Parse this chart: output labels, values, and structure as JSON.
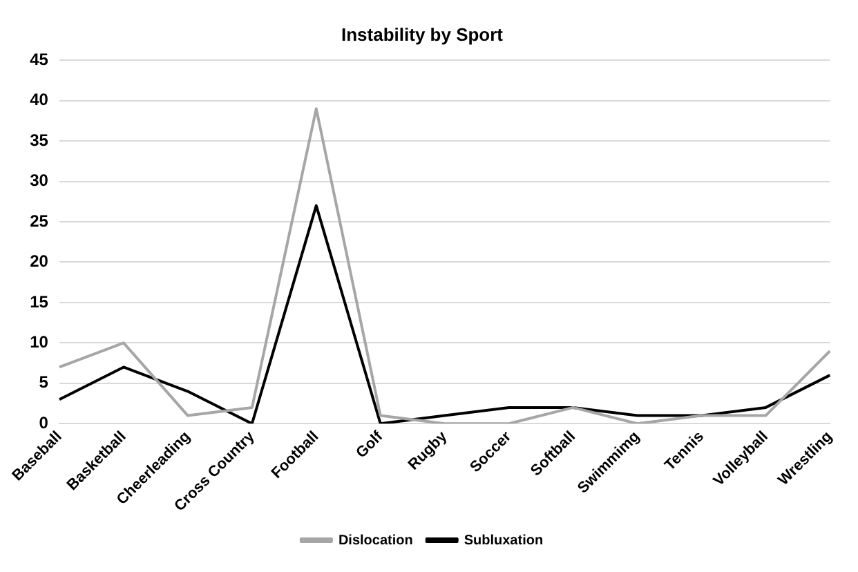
{
  "chart_data": {
    "type": "line",
    "title": "Instability by Sport",
    "categories": [
      "Baseball",
      "Basketball",
      "Cheerleading",
      "Cross Country",
      "Football",
      "Golf",
      "Rugby",
      "Soccer",
      "Softball",
      "Swimmimg",
      "Tennis",
      "Volleyball",
      "Wrestling"
    ],
    "series": [
      {
        "name": "Dislocation",
        "color": "#a6a6a6",
        "values": [
          7,
          10,
          1,
          2,
          39,
          1,
          0,
          0,
          2,
          0,
          1,
          1,
          9
        ]
      },
      {
        "name": "Subluxation",
        "color": "#000000",
        "values": [
          3,
          7,
          4,
          0,
          27,
          0,
          1,
          2,
          2,
          1,
          1,
          2,
          6
        ]
      }
    ],
    "ylim": [
      0,
      45
    ],
    "yticks": [
      0,
      5,
      10,
      15,
      20,
      25,
      30,
      35,
      40,
      45
    ],
    "grid": "y",
    "legend": "bottom",
    "marker": "none",
    "line_style": "solid"
  }
}
